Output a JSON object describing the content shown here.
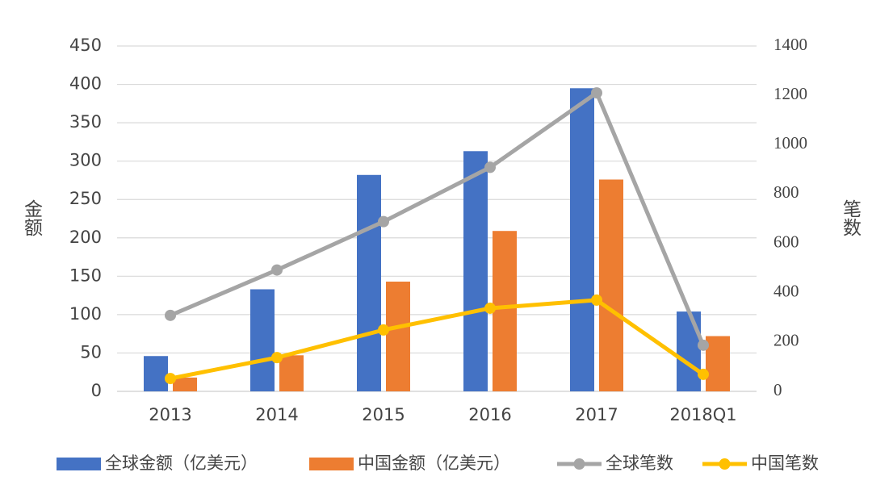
{
  "chart_data": {
    "type": "combo",
    "y_label": "金额",
    "y2_label": "笔数",
    "categories": [
      "2013",
      "2014",
      "2015",
      "2016",
      "2017",
      "2018Q1"
    ],
    "series": [
      {
        "name": "全球金额（亿美元）",
        "type": "bar",
        "color": "#4472c4",
        "values": [
          46,
          133,
          282,
          313,
          395,
          104
        ]
      },
      {
        "name": "中国金额（亿美元）",
        "type": "bar",
        "color": "#ed7d31",
        "values": [
          18,
          47,
          143,
          209,
          276,
          72
        ]
      },
      {
        "name": "全球笔数",
        "type": "line",
        "axis": "y2",
        "color": "#a5a5a5",
        "values": [
          308,
          492,
          688,
          908,
          1210,
          187
        ]
      },
      {
        "name": "中国笔数",
        "type": "line",
        "axis": "y2",
        "color": "#ffc000",
        "values": [
          52,
          137,
          249,
          337,
          370,
          69
        ]
      }
    ],
    "ylim": [
      0,
      450
    ],
    "yticks": [
      0,
      50,
      100,
      150,
      200,
      250,
      300,
      350,
      400,
      450
    ],
    "y2lim": [
      0,
      1400
    ],
    "y2ticks": [
      0,
      200,
      400,
      600,
      800,
      1000,
      1200,
      1400
    ],
    "grid": true,
    "legend": "bottom"
  }
}
